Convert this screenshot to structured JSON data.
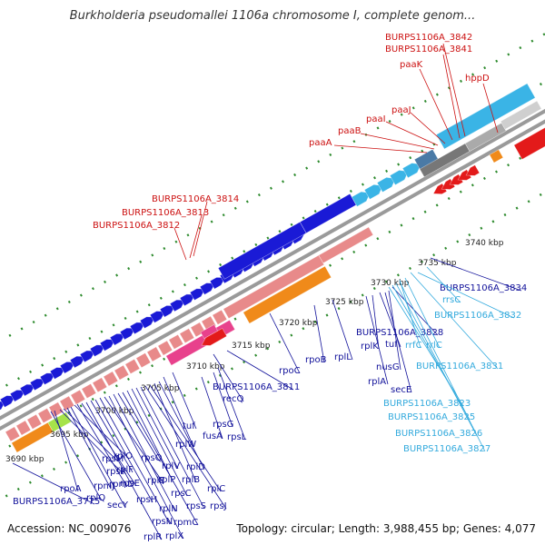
{
  "title": "Burkholderia pseudomallei 1106a chromosome I, complete genom...",
  "footer": {
    "accession": "Accession: NC_009076",
    "stats": "Topology: circular; Length: 3,988,455 bp; Genes: 4,077"
  },
  "colors": {
    "backbone": "#9a9a9a",
    "tick": "#2e8b2e",
    "forward_gene": "#1a1ad6",
    "forward_light": "#3ab4e6",
    "rrna": "#f0f0f0",
    "trna_pink": "#e8418c",
    "cds_pink": "#e88a8a",
    "cds_orange": "#f08a1a",
    "red_label": "#cc1111",
    "blue_label": "#11119a",
    "cyan_label": "#33aadd"
  },
  "scale_labels": [
    "3690 kbp",
    "3695 kbp",
    "3700 kbp",
    "3705 kbp",
    "3710 kbp",
    "3715 kbp",
    "3720 kbp",
    "3725 kbp",
    "3730 kbp",
    "3735 kbp",
    "3740 kbp"
  ],
  "red_labels": [
    "BURPS1106A_3842",
    "BURPS1106A_3841",
    "paaK",
    "hppD",
    "paaJ",
    "paaI",
    "paaB",
    "paaA",
    "BURPS1106A_3814",
    "BURPS1106A_3813",
    "BURPS1106A_3812"
  ],
  "blue_labels": [
    "BURPS1106A_3834",
    "BURPS1106A_3828",
    "nusG",
    "secE",
    "tuf",
    "rplK",
    "rplA",
    "rplL",
    "rpoB",
    "rpoC",
    "BURPS1106A_3811",
    "recQ",
    "rpsG",
    "fusA",
    "rpsL",
    "tuf",
    "rplW",
    "rplD",
    "rplB",
    "rplC",
    "rpsJ",
    "rpsS",
    "rplV",
    "rpsC",
    "rplP",
    "rpmC",
    "rpsQ",
    "rplN",
    "rplX",
    "rplE",
    "rpsN",
    "rpsH",
    "rplF",
    "rplR",
    "rpsE",
    "rpmD",
    "rplO",
    "secY",
    "rpmJ",
    "rpsM",
    "rpsK",
    "rpoA",
    "rplQ",
    "BURPS1106A_3775"
  ],
  "cyan_labels": [
    "rrsC",
    "BURPS1106A_3832",
    "rrlC",
    "rrfC",
    "BURPS1106A_3831",
    "BURPS1106A_3823",
    "BURPS1106A_3825",
    "BURPS1106A_3826",
    "BURPS1106A_3827"
  ]
}
